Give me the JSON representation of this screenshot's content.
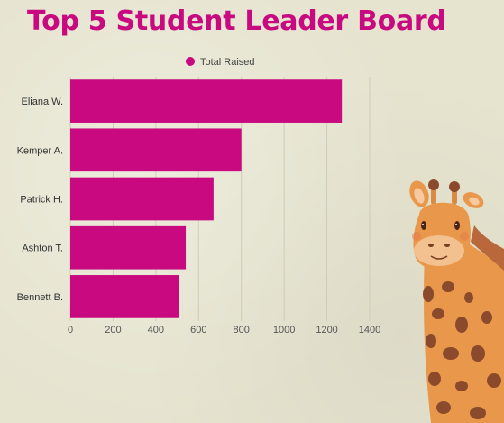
{
  "page": {
    "title": "Top 5 Student Leader Board"
  },
  "chart_data": {
    "type": "bar",
    "orientation": "horizontal",
    "title": "Top 5 Student Leader Board",
    "categories": [
      "Eliana W.",
      "Kemper A.",
      "Patrick H.",
      "Ashton T.",
      "Bennett B."
    ],
    "series": [
      {
        "name": "Total Raised",
        "values": [
          1270,
          800,
          670,
          540,
          510
        ],
        "color": "#c9097f"
      }
    ],
    "xlim": [
      0,
      1400
    ],
    "xticks": [
      0,
      200,
      400,
      600,
      800,
      1000,
      1200,
      1400
    ],
    "legend": "top-center",
    "grid": "vertical"
  },
  "colors": {
    "accent": "#c9097f",
    "background": "#e6e4cf",
    "gridline": "#cfcdb8"
  },
  "decoration": {
    "icon": "giraffe-illustration"
  }
}
